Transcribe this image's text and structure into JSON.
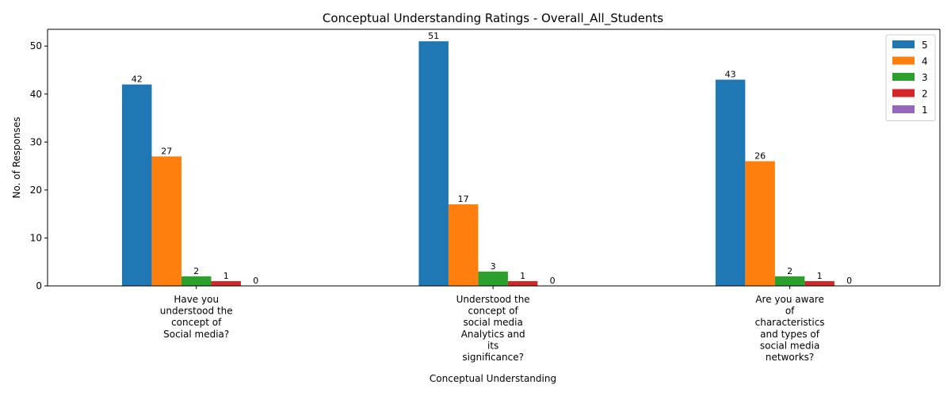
{
  "chart_data": {
    "type": "bar",
    "title": "Conceptual Understanding Ratings - Overall_All_Students",
    "xlabel": "Conceptual Understanding",
    "ylabel": "No. of Responses",
    "ylim": [
      0,
      53.5
    ],
    "yticks": [
      0,
      10,
      20,
      30,
      40,
      50
    ],
    "grid": false,
    "legend_position": "top-right",
    "categories": [
      [
        "Have you",
        "understood the",
        "concept of",
        "Social media?"
      ],
      [
        "Understood the",
        "concept of",
        "social media",
        "Analytics and",
        "its",
        "significance?"
      ],
      [
        "Are you aware",
        "of",
        "characteristics",
        "and types of",
        "social media",
        "networks?"
      ]
    ],
    "series": [
      {
        "name": "5",
        "color": "#1f77b4",
        "values": [
          42,
          51,
          43
        ]
      },
      {
        "name": "4",
        "color": "#ff7f0e",
        "values": [
          27,
          17,
          26
        ]
      },
      {
        "name": "3",
        "color": "#2ca02c",
        "values": [
          2,
          3,
          2
        ]
      },
      {
        "name": "2",
        "color": "#d62728",
        "values": [
          1,
          1,
          1
        ]
      },
      {
        "name": "1",
        "color": "#9467bd",
        "values": [
          0,
          0,
          0
        ]
      }
    ]
  }
}
